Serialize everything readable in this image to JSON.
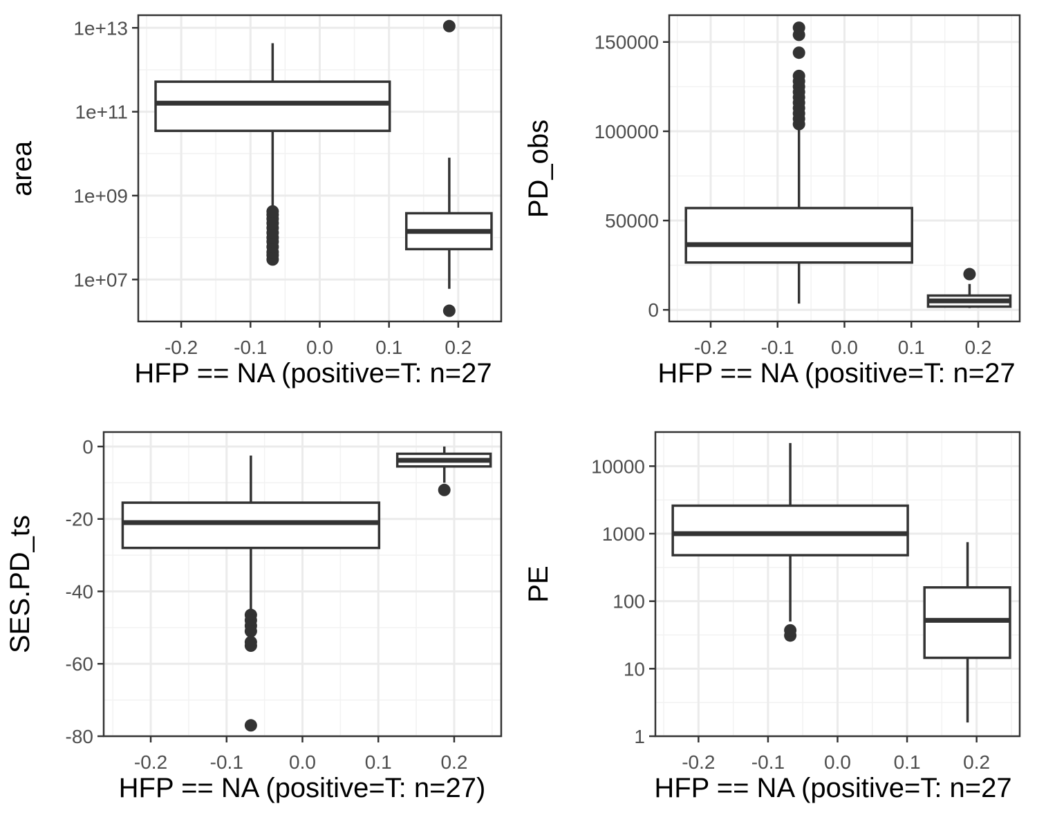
{
  "chart_data": [
    {
      "type": "box",
      "xlabel": "HFP == NA (positive=T: n=27",
      "ylabel": "area",
      "xlim": [
        -0.262,
        0.262
      ],
      "x_ticks": [
        -0.2,
        -0.1,
        0.0,
        0.1,
        0.2
      ],
      "x_tick_labels": [
        "-0.2",
        "-0.1",
        "0.0",
        "0.1",
        "0.2"
      ],
      "y_scale": "log10",
      "ylim": [
        1000000,
        20000000000000
      ],
      "y_ticks": [
        10000000,
        1000000000,
        100000000000,
        10000000000000
      ],
      "y_tick_labels": [
        "1e+07",
        "1e+09",
        "1e+11",
        "1e+13"
      ],
      "y_minor_ticks": [
        100000000,
        10000000000,
        1000000000000
      ],
      "grid": true,
      "boxes": [
        {
          "x_center": -0.068,
          "x_range": [
            -0.237,
            0.101
          ],
          "whisker_low": 500000000,
          "q1": 35000000000,
          "median": 160000000000,
          "q3": 520000000000,
          "whisker_high": 4300000000000,
          "outliers": [
            30000000,
            38000000,
            45000000,
            60000000,
            80000000,
            100000000,
            130000000,
            170000000,
            220000000,
            280000000,
            350000000,
            420000000
          ]
        },
        {
          "x_center": 0.187,
          "x_range": [
            0.125,
            0.248
          ],
          "whisker_low": 6000000,
          "q1": 53000000,
          "median": 140000000,
          "q3": 380000000,
          "whisker_high": 8000000000,
          "outliers": [
            1800000,
            11000000000000
          ]
        }
      ]
    },
    {
      "type": "box",
      "xlabel": "HFP == NA (positive=T: n=27",
      "ylabel": "PD_obs",
      "xlim": [
        -0.262,
        0.262
      ],
      "x_ticks": [
        -0.2,
        -0.1,
        0.0,
        0.1,
        0.2
      ],
      "x_tick_labels": [
        "-0.2",
        "-0.1",
        "0.0",
        "0.1",
        "0.2"
      ],
      "y_scale": "linear",
      "ylim": [
        -6500,
        165000
      ],
      "y_ticks": [
        0,
        50000,
        100000,
        150000
      ],
      "y_tick_labels": [
        "0",
        "50000",
        "100000",
        "150000"
      ],
      "y_minor_ticks": [
        25000,
        75000,
        125000
      ],
      "grid": true,
      "boxes": [
        {
          "x_center": -0.068,
          "x_range": [
            -0.237,
            0.101
          ],
          "whisker_low": 3500,
          "q1": 26500,
          "median": 36500,
          "q3": 57000,
          "whisker_high": 102000,
          "outliers": [
            104000,
            107000,
            110000,
            113000,
            116000,
            119000,
            122000,
            125000,
            128000,
            131000,
            144000,
            154000,
            158000
          ]
        },
        {
          "x_center": 0.187,
          "x_range": [
            0.125,
            0.248
          ],
          "whisker_low": 1000,
          "q1": 1800,
          "median": 5000,
          "q3": 8000,
          "whisker_high": 14500,
          "outliers": [
            20000
          ]
        }
      ]
    },
    {
      "type": "box",
      "xlabel": "HFP == NA (positive=T: n=27)",
      "ylabel": "SES.PD_ts",
      "xlim": [
        -0.262,
        0.262
      ],
      "x_ticks": [
        -0.2,
        -0.1,
        0.0,
        0.1,
        0.2
      ],
      "x_tick_labels": [
        "-0.2",
        "-0.1",
        "0.0",
        "0.1",
        "0.2"
      ],
      "y_scale": "linear",
      "ylim": [
        -80,
        4
      ],
      "y_ticks": [
        -80,
        -60,
        -40,
        -20,
        0
      ],
      "y_tick_labels": [
        "-80",
        "-60",
        "-40",
        "-20",
        "0"
      ],
      "y_minor_ticks": [
        -70,
        -50,
        -30,
        -10
      ],
      "grid": true,
      "boxes": [
        {
          "x_center": -0.068,
          "x_range": [
            -0.237,
            0.101
          ],
          "whisker_low": -46,
          "q1": -28,
          "median": -21,
          "q3": -15.5,
          "whisker_high": -2.5,
          "outliers": [
            -46.5,
            -48,
            -49.5,
            -51,
            -54,
            -55,
            -77
          ]
        },
        {
          "x_center": 0.187,
          "x_range": [
            0.125,
            0.248
          ],
          "whisker_low": -10,
          "q1": -5.5,
          "median": -3.8,
          "q3": -2,
          "whisker_high": 0,
          "outliers": [
            -12
          ]
        }
      ]
    },
    {
      "type": "box",
      "xlabel": "HFP == NA (positive=T: n=27",
      "ylabel": "PE",
      "xlim": [
        -0.262,
        0.262
      ],
      "x_ticks": [
        -0.2,
        -0.1,
        0.0,
        0.1,
        0.2
      ],
      "x_tick_labels": [
        "-0.2",
        "-0.1",
        "0.0",
        "0.1",
        "0.2"
      ],
      "y_scale": "log10",
      "ylim": [
        1,
        32000
      ],
      "y_ticks": [
        1,
        10,
        100,
        1000,
        10000
      ],
      "y_tick_labels": [
        "1",
        "10",
        "100",
        "1000",
        "10000"
      ],
      "y_minor_ticks": [
        3.16,
        31.6,
        316,
        3160
      ],
      "grid": true,
      "boxes": [
        {
          "x_center": -0.068,
          "x_range": [
            -0.237,
            0.101
          ],
          "whisker_low": 50,
          "q1": 480,
          "median": 1000,
          "q3": 2600,
          "whisker_high": 22000,
          "outliers": [
            31,
            37
          ]
        },
        {
          "x_center": 0.187,
          "x_range": [
            0.125,
            0.248
          ],
          "whisker_low": 1.6,
          "q1": 14.5,
          "median": 52,
          "q3": 160,
          "whisker_high": 750,
          "outliers": []
        }
      ]
    }
  ]
}
